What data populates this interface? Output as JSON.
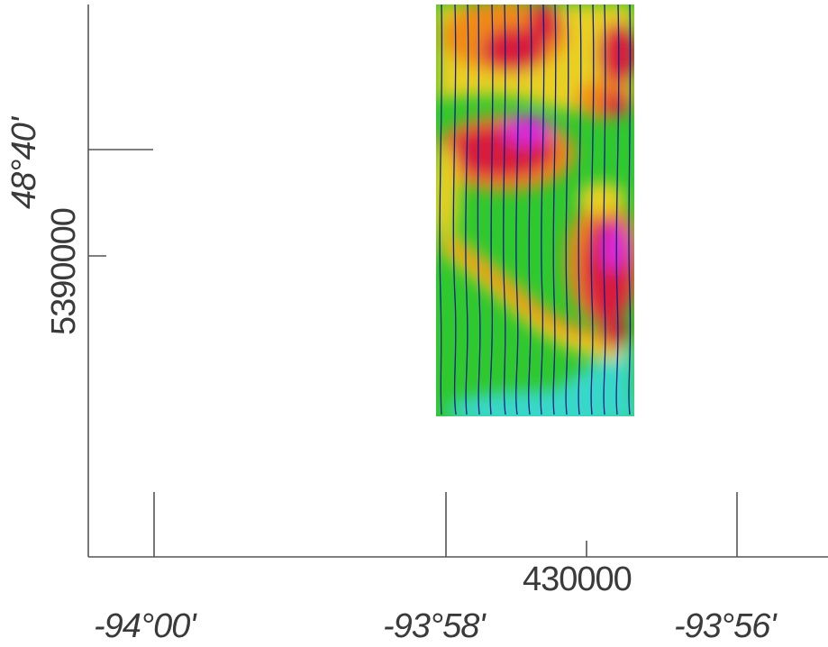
{
  "map": {
    "axis_labels": {
      "utm_easting": "430000",
      "utm_northing": "5390000",
      "latitude": "48°40'",
      "longitude": [
        "-94°00'",
        "-93°58'",
        "-93°56'"
      ]
    },
    "colors": {
      "background": "#ffffff",
      "axis": "#555555",
      "flight_line": "#0a1e8c",
      "anomaly_low": "#38d8c8",
      "anomaly_base": "#2fc82f",
      "anomaly_mid": "#e8d020",
      "anomaly_orange": "#f08a18",
      "anomaly_high": "#d81c3c",
      "anomaly_peak": "#d82ad8"
    },
    "color_scale": [
      "cyan",
      "green",
      "yellow",
      "orange",
      "red",
      "magenta"
    ]
  }
}
